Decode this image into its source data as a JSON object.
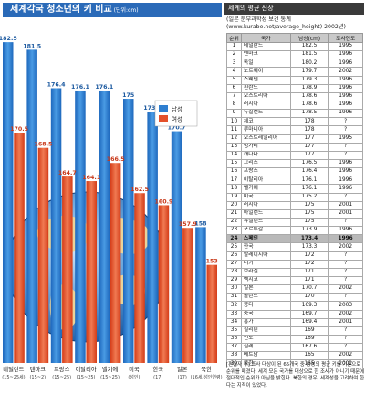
{
  "left_panel": {
    "title": "세계각국 청소년의 키 비교",
    "unit": "(단위:cm)"
  },
  "chart_data": {
    "type": "bar",
    "categories": [
      "네덜란드",
      "덴마크",
      "프랑스",
      "이탈리아",
      "벨기에",
      "미국",
      "한국",
      "일본",
      "북한"
    ],
    "category_notes": [
      "(15~25세)",
      "(15~2)",
      "(15~25)",
      "(15~25)",
      "(15~25)",
      "(성인)",
      "(17)",
      "(17)",
      "(16세/성인연령)"
    ],
    "series": [
      {
        "name": "남성",
        "color": "#2f7fd0",
        "values": [
          182.5,
          181.5,
          176.4,
          176.1,
          176.1,
          175,
          173.3,
          170.7,
          158
        ]
      },
      {
        "name": "여성",
        "color": "#e4512b",
        "values": [
          170.5,
          168.5,
          164.7,
          164.1,
          166.5,
          162.5,
          160.9,
          157.9,
          153
        ]
      }
    ],
    "legend_position": "right"
  },
  "right_panel": {
    "title": "세계의 평균 신장",
    "source": "(일본 문부과학성 보건 통계(www.kurabe.net/average_height) 2002년)",
    "columns": [
      "순위",
      "국가",
      "남성(cm)",
      "조사연도"
    ],
    "rows": [
      [
        "1",
        "네덜란드",
        "182.5",
        "1995"
      ],
      [
        "2",
        "덴마크",
        "181.5",
        "1996"
      ],
      [
        "3",
        "독일",
        "180.2",
        "1996"
      ],
      [
        "4",
        "노르웨이",
        "179.7",
        "2002"
      ],
      [
        "5",
        "스웨덴",
        "179.3",
        "1996"
      ],
      [
        "6",
        "핀란드",
        "178.9",
        "1996"
      ],
      [
        "7",
        "오스트리아",
        "178.6",
        "1996"
      ],
      [
        "8",
        "러시아",
        "178.6",
        "1996"
      ],
      [
        "9",
        "뉴질랜드",
        "178.5",
        "1996"
      ],
      [
        "10",
        "체코",
        "178",
        "?"
      ],
      [
        "11",
        "루마니아",
        "178",
        "?"
      ],
      [
        "12",
        "오스트레일리아",
        "177",
        "1995"
      ],
      [
        "13",
        "헝가리",
        "177",
        "?"
      ],
      [
        "14",
        "캐나다",
        "177",
        "?"
      ],
      [
        "15",
        "그리스",
        "176.5",
        "1996"
      ],
      [
        "16",
        "프랑스",
        "176.4",
        "1996"
      ],
      [
        "17",
        "이탈리아",
        "176.1",
        "1996"
      ],
      [
        "18",
        "벨기에",
        "176.1",
        "1996"
      ],
      [
        "19",
        "미국",
        "175.2",
        "?"
      ],
      [
        "20",
        "러시아",
        "175",
        "2001"
      ],
      [
        "21",
        "아일랜드",
        "175",
        "2001"
      ],
      [
        "22",
        "뉴질랜드",
        "175",
        "?"
      ],
      [
        "23",
        "포르투갈",
        "173.9",
        "1996"
      ],
      [
        "24",
        "스페인",
        "173.4",
        "1996"
      ],
      [
        "25",
        "한국",
        "173.3",
        "2002"
      ],
      [
        "26",
        "말레이시아",
        "172",
        "?"
      ],
      [
        "27",
        "터키",
        "172",
        "?"
      ],
      [
        "28",
        "브라질",
        "171",
        "?"
      ],
      [
        "29",
        "멕시코",
        "171",
        "?"
      ],
      [
        "30",
        "일본",
        "170.7",
        "2002"
      ],
      [
        "31",
        "폴란드",
        "170",
        "?"
      ],
      [
        "32",
        "몽타",
        "169.3",
        "2003"
      ],
      [
        "33",
        "중국",
        "169.7",
        "2002"
      ],
      [
        "34",
        "홍가",
        "169.4",
        "2001"
      ],
      [
        "35",
        "필리핀",
        "169",
        "?"
      ],
      [
        "36",
        "인도",
        "169",
        "?"
      ],
      [
        "37",
        "칠레",
        "167.6",
        "?"
      ],
      [
        "38",
        "베트남",
        "165",
        "2002"
      ],
      [
        "39",
        "북한",
        "165",
        "2002"
      ]
    ],
    "highlight_rank": "24",
    "note": "[편집자 주] 조사 대상이 된 65개국 중 남성의 평균 키를 기준으로 순위를 매겼다. 세계 모든 국가를 대상으로 한 조사가 아니기 때문에 절대적인 순위가 아님을 밝힌다. 북한의 경우, 세계성을 고려하여 한다는 지적이 있었다."
  }
}
